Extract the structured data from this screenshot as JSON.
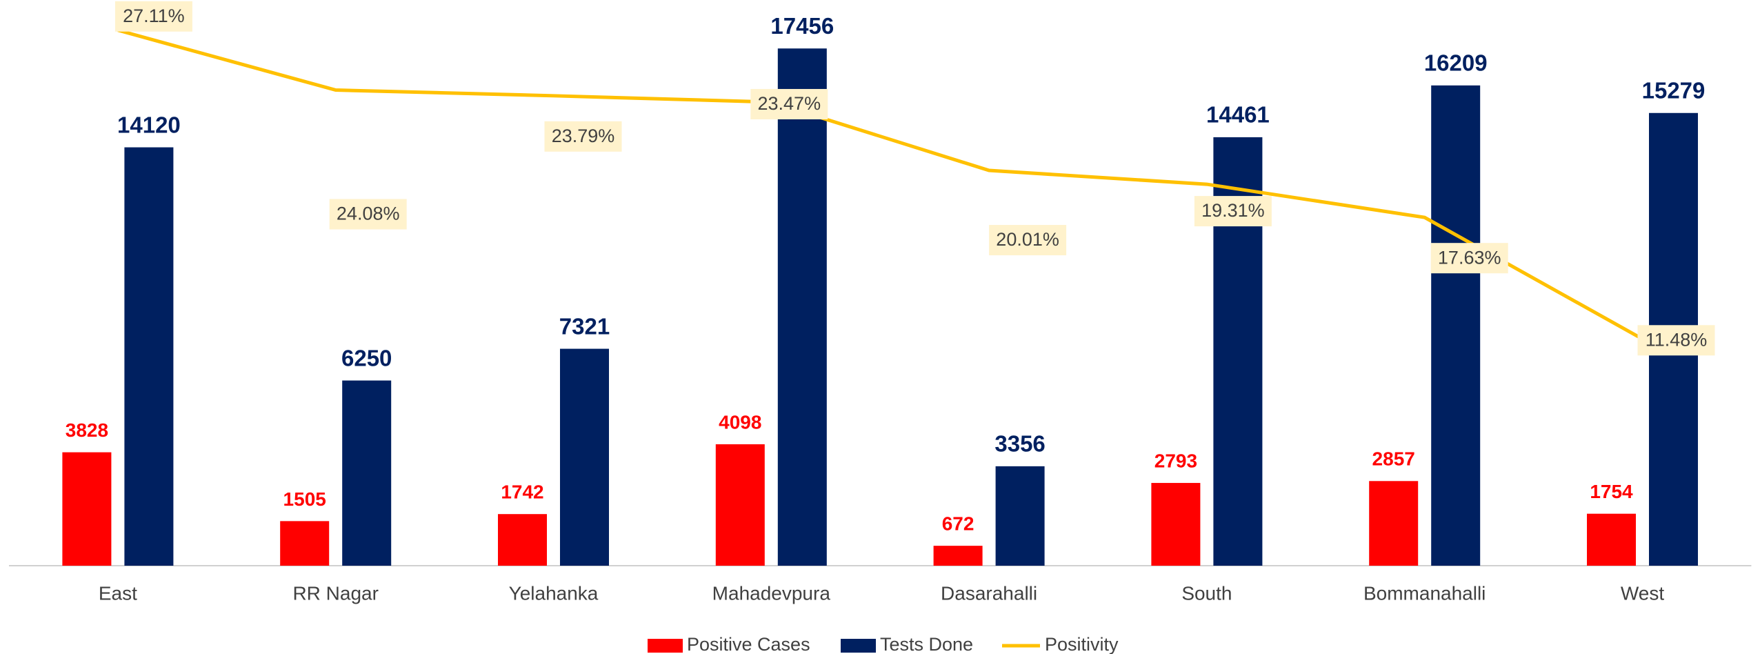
{
  "chart_data": {
    "type": "bar-line",
    "categories": [
      "East",
      "RR Nagar",
      "Yelahanka",
      "Mahadevpura",
      "Dasarahalli",
      "South",
      "Bommanahalli",
      "West"
    ],
    "series": [
      {
        "name": "Positive Cases",
        "type": "bar",
        "color": "#ff0000",
        "values": [
          3828,
          1505,
          1742,
          4098,
          672,
          2793,
          2857,
          1754
        ]
      },
      {
        "name": "Tests Done",
        "type": "bar",
        "color": "#002060",
        "values": [
          14120,
          6250,
          7321,
          17456,
          3356,
          14461,
          16209,
          15279
        ]
      },
      {
        "name": "Positivity",
        "type": "line",
        "axis": "y2",
        "color": "#ffc000",
        "values": [
          27.11,
          24.08,
          23.79,
          23.47,
          20.01,
          19.31,
          17.63,
          11.48
        ],
        "value_labels": [
          "27.11%",
          "24.08%",
          "23.79%",
          "23.47%",
          "20.01%",
          "19.31%",
          "17.63%",
          "11.48%"
        ]
      }
    ],
    "ylim": [
      0,
      20000
    ],
    "y2lim": [
      0,
      30
    ],
    "legend": "bottom"
  }
}
